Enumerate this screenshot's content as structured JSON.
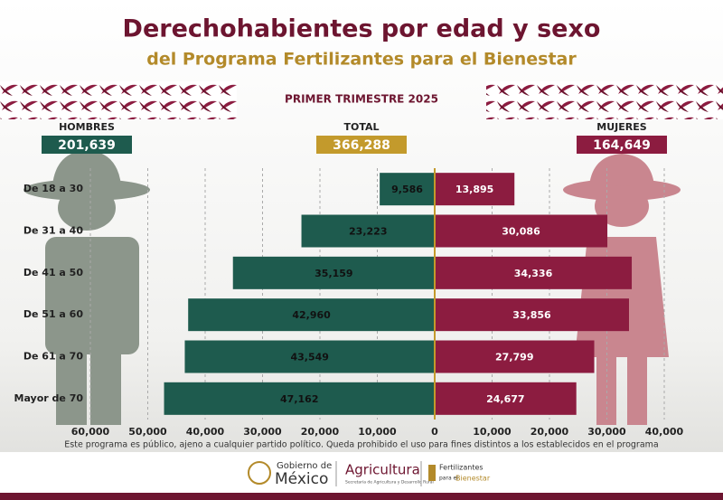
{
  "chart_data": {
    "type": "pyramid",
    "title": "Derechohabientes por edad y sexo",
    "subtitle": "del Programa Fertilizantes para el Bienestar",
    "period": "PRIMER TRIMESTRE 2025",
    "totals": [
      {
        "name": "HOMBRES",
        "value": "201,639"
      },
      {
        "name": "TOTAL",
        "value": "366,288"
      },
      {
        "name": "MUJERES",
        "value": "164,649"
      }
    ],
    "categories": [
      "De 18 a 30",
      "De 31 a 40",
      "De 41 a 50",
      "De 51 a 60",
      "De 61 a 70",
      "Mayor de 70"
    ],
    "series": [
      {
        "name": "HOMBRES",
        "side": "left",
        "color": "#1e5b4e",
        "values": [
          9586,
          23223,
          35159,
          42960,
          43549,
          47162
        ],
        "value_labels": [
          "9,586",
          "23,223",
          "35,159",
          "42,960",
          "43,549",
          "47,162"
        ]
      },
      {
        "name": "MUJERES",
        "side": "right",
        "color": "#8c1c40",
        "values": [
          13895,
          30086,
          34336,
          33856,
          27799,
          24677
        ],
        "value_labels": [
          "13,895",
          "30,086",
          "34,336",
          "33,856",
          "27,799",
          "24,677"
        ]
      }
    ],
    "xlim": [
      -60000,
      40000
    ],
    "xticks": [
      {
        "value": -60000,
        "label": "60,000"
      },
      {
        "value": -50000,
        "label": "50,000"
      },
      {
        "value": -40000,
        "label": "40,000"
      },
      {
        "value": -30000,
        "label": "30,000"
      },
      {
        "value": -20000,
        "label": "20,000"
      },
      {
        "value": -10000,
        "label": "10,000"
      },
      0,
      {
        "value": 10000,
        "label": "10,000"
      },
      {
        "value": 20000,
        "label": "20,000"
      },
      {
        "value": 30000,
        "label": "30,000"
      },
      {
        "value": 40000,
        "label": "40,000"
      }
    ],
    "grid": true,
    "footnote": "Este programa es público, ajeno a cualquier partido político. Queda prohibido el uso para fines distintos a los establecidos en el programa",
    "logos": [
      "Gobierno de",
      "México",
      "Agricultura",
      "Secretaría de Agricultura y Desarrollo Rural",
      "Fertilizantes",
      "para el",
      "Bienestar"
    ]
  }
}
